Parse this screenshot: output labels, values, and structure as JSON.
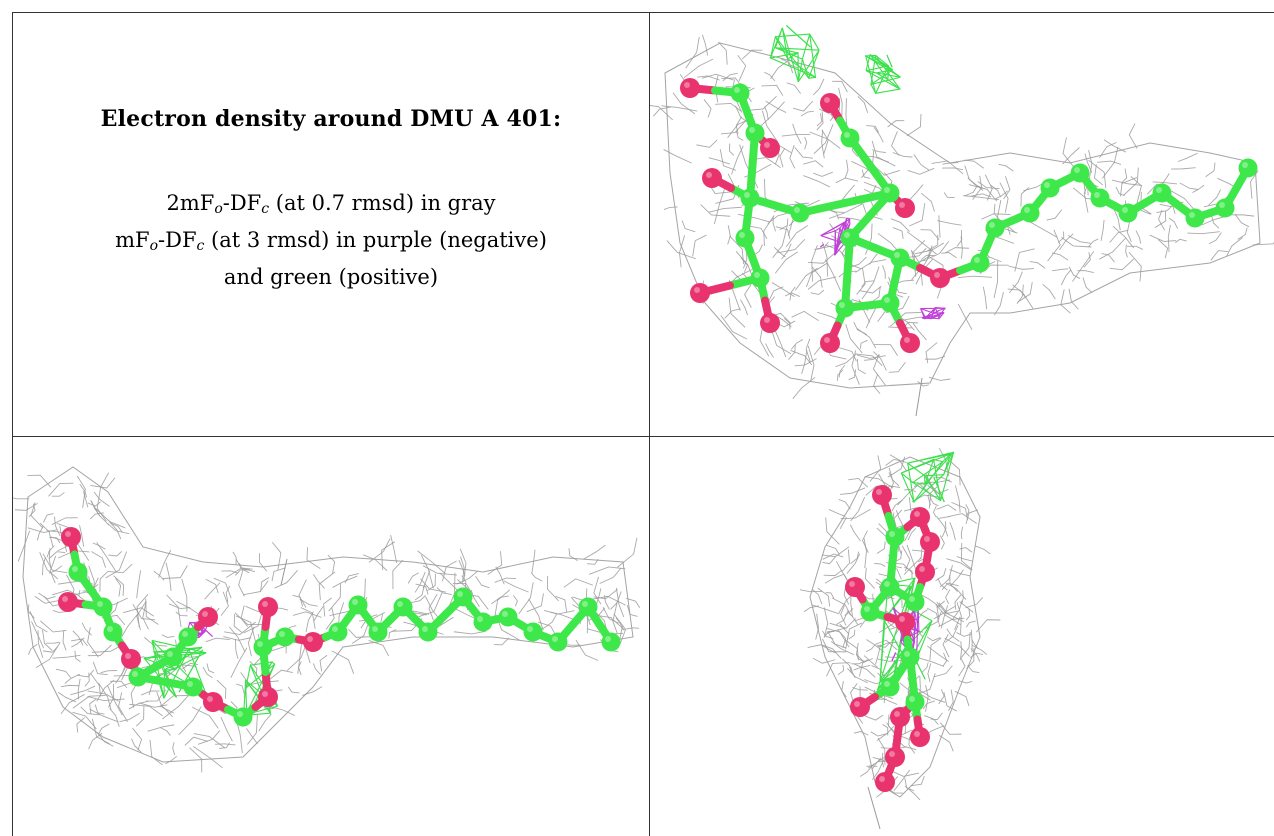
{
  "caption": {
    "title": "Electron density around DMU A 401:",
    "line1": {
      "prefix": "2mF",
      "sub1": "o",
      "mid": "-DF",
      "sub2": "c",
      "suffix": " (at 0.7 rmsd) in gray"
    },
    "line2": {
      "prefix": "mF",
      "sub1": "o",
      "mid": "-DF",
      "sub2": "c",
      "suffix": " (at 3 rmsd) in purple (negative)"
    },
    "line3": "and green (positive)"
  },
  "colors": {
    "carbon": "#3ee84a",
    "oxygen": "#e8336e",
    "map_2fofc": "#9a9a9a",
    "map_negative": "#c040d8",
    "map_positive": "#3be04a",
    "rule": "#333333"
  },
  "views": [
    {
      "id": "view-top-right",
      "orientation": "front"
    },
    {
      "id": "view-bottom-left",
      "orientation": "side"
    },
    {
      "id": "view-bottom-right",
      "orientation": "end-on"
    }
  ]
}
